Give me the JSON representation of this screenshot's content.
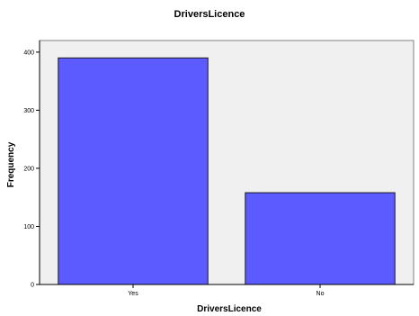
{
  "chart_data": {
    "type": "bar",
    "title": "DriversLicence",
    "xlabel": "DriversLicence",
    "ylabel": "Frequency",
    "categories": [
      "Yes",
      "No"
    ],
    "values": [
      390,
      158
    ],
    "ylim": [
      0,
      420
    ],
    "yticks": [
      0,
      100,
      200,
      300,
      400
    ],
    "grid": false,
    "colors": {
      "bar_fill": "#5b5bff",
      "bar_stroke": "#1a1a1a",
      "plot_bg": "#f0f0f0",
      "axis": "#000000"
    }
  }
}
